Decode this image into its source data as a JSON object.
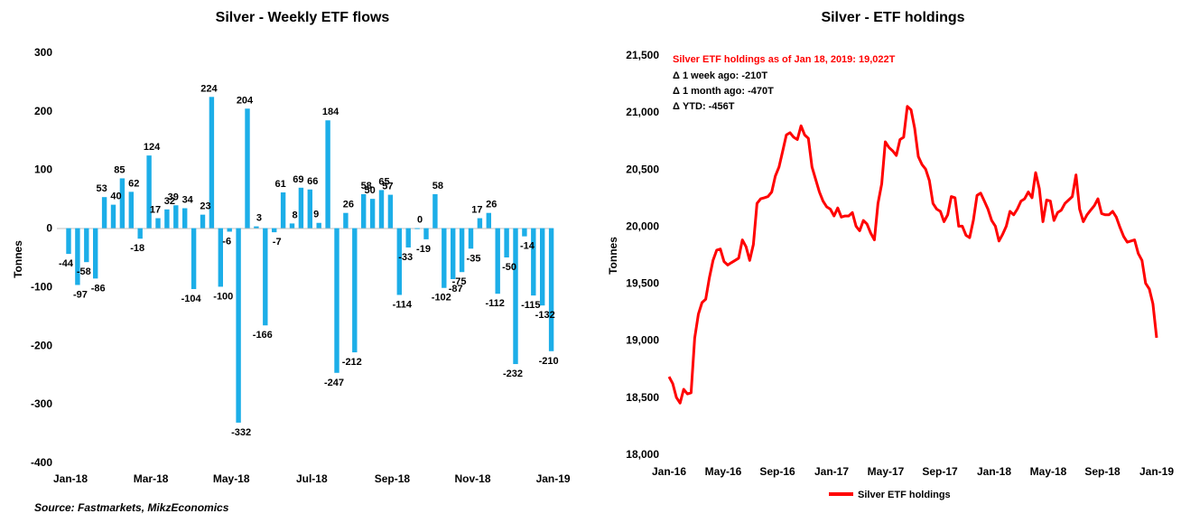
{
  "source": "Source: Fastmarkets, MikzEconomics",
  "chart_data": [
    {
      "type": "bar",
      "title": "Silver - Weekly ETF flows",
      "ylabel": "Tonnes",
      "xlabel": "",
      "ylim": [
        -400,
        300
      ],
      "yticks": [
        300,
        200,
        100,
        0,
        -100,
        -200,
        -300,
        -400
      ],
      "xtick_labels": [
        "Jan-18",
        "Mar-18",
        "May-18",
        "Jul-18",
        "Sep-18",
        "Nov-18",
        "Jan-19"
      ],
      "values": [
        -44,
        -97,
        -58,
        -86,
        53,
        40,
        85,
        62,
        -18,
        124,
        17,
        32,
        39,
        34,
        -104,
        23,
        224,
        -100,
        -6,
        -332,
        204,
        3,
        -166,
        -7,
        61,
        8,
        69,
        66,
        9,
        184,
        -247,
        26,
        -212,
        58,
        50,
        65,
        57,
        -114,
        -33,
        0,
        -19,
        58,
        -102,
        -87,
        -75,
        -35,
        17,
        26,
        -112,
        -50,
        -232,
        -14,
        -115,
        -132,
        -210
      ],
      "color": "#1CAEE8",
      "grid": false
    },
    {
      "type": "line",
      "title": "Silver - ETF holdings",
      "ylabel": "Tonnes",
      "xlabel": "",
      "ylim": [
        18000,
        21500
      ],
      "yticks": [
        "21,500",
        "21,000",
        "20,500",
        "20,000",
        "19,500",
        "19,000",
        "18,500",
        "18,000"
      ],
      "xtick_labels": [
        "Jan-16",
        "May-16",
        "Sep-16",
        "Jan-17",
        "May-17",
        "Sep-17",
        "Jan-18",
        "May-18",
        "Sep-18",
        "Jan-19"
      ],
      "series": [
        {
          "name": "Silver ETF holdings",
          "color": "#FF0000",
          "values": [
            18680,
            18620,
            18500,
            18450,
            18570,
            18530,
            18540,
            19020,
            19230,
            19330,
            19360,
            19550,
            19700,
            19790,
            19800,
            19690,
            19660,
            19680,
            19700,
            19720,
            19880,
            19820,
            19700,
            19840,
            20200,
            20240,
            20250,
            20260,
            20300,
            20440,
            20520,
            20660,
            20800,
            20820,
            20780,
            20760,
            20880,
            20800,
            20770,
            20520,
            20410,
            20300,
            20220,
            20170,
            20150,
            20090,
            20160,
            20080,
            20090,
            20090,
            20120,
            20000,
            19960,
            20050,
            20020,
            19940,
            19880,
            20200,
            20370,
            20740,
            20690,
            20660,
            20620,
            20760,
            20780,
            21050,
            21020,
            20860,
            20610,
            20540,
            20500,
            20400,
            20200,
            20150,
            20130,
            20040,
            20100,
            20260,
            20250,
            20000,
            20000,
            19920,
            19900,
            20050,
            20270,
            20290,
            20220,
            20150,
            20050,
            20000,
            19870,
            19930,
            20000,
            20130,
            20100,
            20150,
            20220,
            20240,
            20300,
            20250,
            20470,
            20330,
            20040,
            20230,
            20220,
            20050,
            20120,
            20140,
            20200,
            20230,
            20260,
            20450,
            20150,
            20040,
            20100,
            20140,
            20180,
            20240,
            20110,
            20100,
            20100,
            20130,
            20080,
            19990,
            19910,
            19860,
            19870,
            19880,
            19760,
            19700,
            19500,
            19450,
            19320,
            19022
          ]
        }
      ],
      "annotation": {
        "headline": "Silver ETF holdings as of Jan 18, 2019: 19,022T",
        "lines": [
          "Δ 1 week ago: -210T",
          "Δ 1 month ago: -470T",
          "Δ YTD: -456T"
        ]
      },
      "grid": false,
      "legend": "bottom"
    }
  ]
}
